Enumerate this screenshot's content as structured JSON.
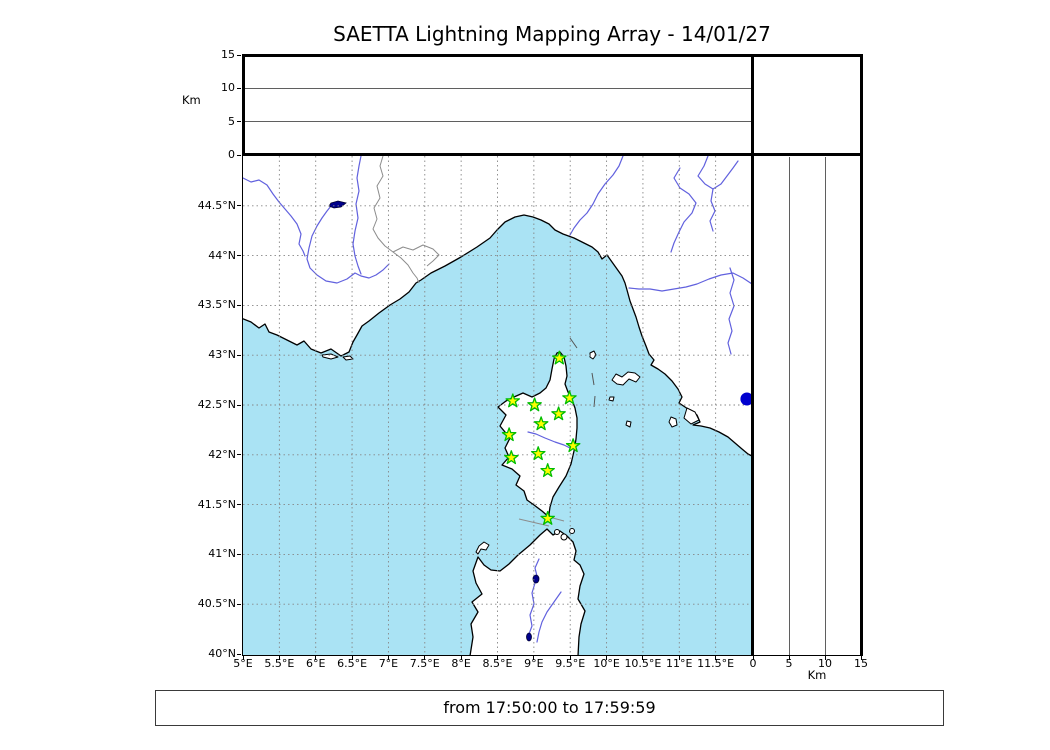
{
  "title": "SAETTA Lightning Mapping Array - 14/01/27",
  "footer": {
    "text": "from 17:50:00 to 17:59:59"
  },
  "altitude_axis": {
    "unit": "Km",
    "max": 15,
    "ticks": [
      {
        "value": 0,
        "label": "0"
      },
      {
        "value": 5,
        "label": "5"
      },
      {
        "value": 10,
        "label": "10"
      },
      {
        "value": 15,
        "label": "15"
      }
    ]
  },
  "map": {
    "lon_min": 5,
    "lon_max": 12,
    "lat_min": 40,
    "lat_max": 45,
    "grid_step_deg": 0.5,
    "lon_labels": [
      {
        "value": 5,
        "label": "5°E"
      },
      {
        "value": 5.5,
        "label": "5.5°E"
      },
      {
        "value": 6,
        "label": "6°E"
      },
      {
        "value": 6.5,
        "label": "6.5°E"
      },
      {
        "value": 7,
        "label": "7°E"
      },
      {
        "value": 7.5,
        "label": "7.5°E"
      },
      {
        "value": 8,
        "label": "8°E"
      },
      {
        "value": 8.5,
        "label": "8.5°E"
      },
      {
        "value": 9,
        "label": "9°E"
      },
      {
        "value": 9.5,
        "label": "9.5°E"
      },
      {
        "value": 10,
        "label": "10°E"
      },
      {
        "value": 10.5,
        "label": "10.5°E"
      },
      {
        "value": 11,
        "label": "11°E"
      },
      {
        "value": 11.5,
        "label": "11.5°E"
      }
    ],
    "lat_labels": [
      {
        "value": 44.5,
        "label": "44.5°N"
      },
      {
        "value": 44,
        "label": "44°N"
      },
      {
        "value": 43.5,
        "label": "43.5°N"
      },
      {
        "value": 43,
        "label": "43°N"
      },
      {
        "value": 42.5,
        "label": "42.5°N"
      },
      {
        "value": 42,
        "label": "42°N"
      },
      {
        "value": 41.5,
        "label": "41.5°N"
      },
      {
        "value": 41,
        "label": "41°N"
      },
      {
        "value": 40.5,
        "label": "40.5°N"
      },
      {
        "value": 40,
        "label": "40°N"
      }
    ]
  },
  "stations": [
    {
      "lon": 9.35,
      "lat": 42.97
    },
    {
      "lon": 8.71,
      "lat": 42.54
    },
    {
      "lon": 9.01,
      "lat": 42.5
    },
    {
      "lon": 9.49,
      "lat": 42.57
    },
    {
      "lon": 9.34,
      "lat": 42.41
    },
    {
      "lon": 9.1,
      "lat": 42.31
    },
    {
      "lon": 8.66,
      "lat": 42.2
    },
    {
      "lon": 9.54,
      "lat": 42.09
    },
    {
      "lon": 8.69,
      "lat": 41.97
    },
    {
      "lon": 9.06,
      "lat": 42.01
    },
    {
      "lon": 9.19,
      "lat": 41.84
    },
    {
      "lon": 9.19,
      "lat": 41.36
    }
  ],
  "event_dot": {
    "lon": 11.93,
    "lat": 42.56
  },
  "colors": {
    "sea": "#aae3f4",
    "land": "#ffffff",
    "coast": "#000000",
    "river": "#6161de",
    "region_border": "#8c8c8c",
    "grid": "#868686",
    "lake": "#00008b",
    "station_fill": "#fdfd00",
    "station_stroke": "#00bd00",
    "event": "#0000cf"
  }
}
